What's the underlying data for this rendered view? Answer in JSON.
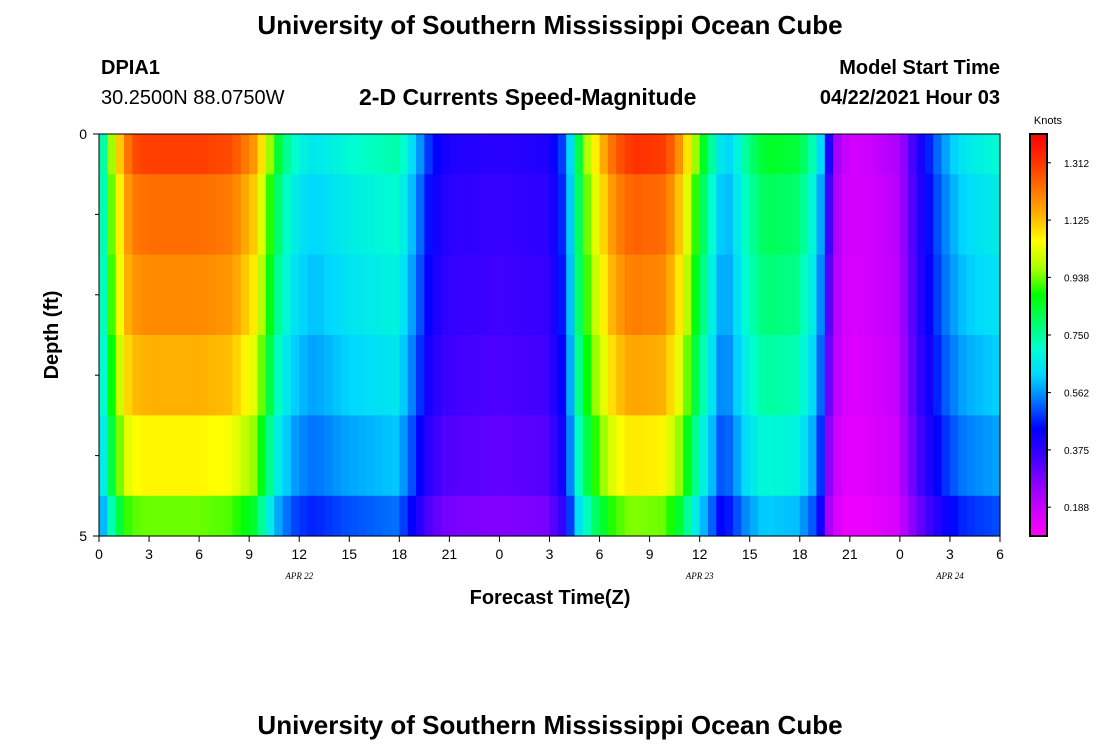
{
  "header": {
    "title_top": "University of Southern Mississippi Ocean Cube",
    "title_bottom": "University of Southern Mississippi Ocean Cube",
    "station_id": "DPIA1",
    "coords": "30.2500N  88.0750W",
    "chart_subtitle": "2-D Currents Speed-Magnitude",
    "model_start_label": "Model Start Time",
    "model_start_value": "04/22/2021 Hour 03"
  },
  "chart_data": {
    "type": "heatmap",
    "title": "2-D Currents Speed-Magnitude",
    "xlabel": "Forecast Time(Z)",
    "ylabel": "Depth (ft)",
    "units": "Knots",
    "x_hours_range": [
      0,
      54
    ],
    "x_tick_hours": [
      0,
      3,
      6,
      9,
      12,
      15,
      18,
      21,
      24,
      27,
      30,
      33,
      36,
      39,
      42,
      45,
      48,
      51,
      54
    ],
    "x_tick_labels": [
      "0",
      "3",
      "6",
      "9",
      "12",
      "15",
      "18",
      "21",
      "0",
      "3",
      "6",
      "9",
      "12",
      "15",
      "18",
      "21",
      "0",
      "3",
      "6"
    ],
    "date_labels": [
      {
        "text": "APR  22",
        "hour": 12
      },
      {
        "text": "APR  23",
        "hour": 36
      },
      {
        "text": "APR  24",
        "hour": 51
      }
    ],
    "y_range": [
      0,
      5
    ],
    "y_tick_labels": [
      {
        "value": 0,
        "label": "0"
      },
      {
        "value": 5,
        "label": "5"
      }
    ],
    "y_minor_ticks": [
      1,
      2,
      3,
      4
    ],
    "depth_bands": [
      {
        "top": 0.0,
        "bottom": 0.5
      },
      {
        "top": 0.5,
        "bottom": 1.5
      },
      {
        "top": 1.5,
        "bottom": 2.5
      },
      {
        "top": 2.5,
        "bottom": 3.5
      },
      {
        "top": 3.5,
        "bottom": 4.5
      },
      {
        "top": 4.5,
        "bottom": 5.0
      }
    ],
    "profile_hours": [
      0,
      0.5,
      1,
      1.5,
      2,
      3,
      4,
      6,
      8,
      9.5,
      10,
      10.5,
      11,
      12,
      13,
      15,
      18,
      19,
      19.5,
      20,
      21,
      24,
      27,
      28,
      28.5,
      29,
      30,
      31,
      32,
      34,
      35,
      36,
      37,
      37.5,
      38,
      39,
      40,
      42,
      43,
      43.5,
      44,
      45,
      46,
      48,
      49,
      50,
      51,
      52,
      54
    ],
    "profile_knots": [
      0.6,
      0.88,
      1.05,
      1.18,
      1.28,
      1.3,
      1.3,
      1.3,
      1.28,
      1.16,
      1.02,
      0.9,
      0.78,
      0.68,
      0.65,
      0.7,
      0.74,
      0.6,
      0.52,
      0.45,
      0.4,
      0.38,
      0.4,
      0.52,
      0.72,
      0.93,
      1.12,
      1.26,
      1.32,
      1.3,
      1.15,
      0.9,
      0.7,
      0.6,
      0.65,
      0.78,
      0.85,
      0.83,
      0.7,
      0.55,
      0.25,
      0.17,
      0.18,
      0.22,
      0.38,
      0.5,
      0.6,
      0.66,
      0.7
    ],
    "depth_offsets": [
      0.0,
      0.05,
      0.08,
      0.1,
      0.13,
      0.15
    ],
    "depth_gain": [
      1.0,
      0.95,
      0.92,
      0.88,
      0.82,
      0.72
    ],
    "colorbar": {
      "label": "Knots",
      "range": [
        0.094,
        1.406
      ],
      "tick_values": [
        0.188,
        0.375,
        0.562,
        0.75,
        0.938,
        1.125,
        1.312
      ],
      "tick_labels": [
        "0.188",
        "0.375",
        "0.562",
        "0.750",
        "0.938",
        "1.125",
        "1.312"
      ],
      "stops": [
        "#ff00ff",
        "#cc00ff",
        "#8800ff",
        "#3a00ff",
        "#0000ff",
        "#0070ff",
        "#00d8ff",
        "#00ffd0",
        "#00ff66",
        "#00ff00",
        "#aaff00",
        "#ffff00",
        "#ffb000",
        "#ff7000",
        "#ff3000",
        "#ff0000"
      ]
    }
  }
}
